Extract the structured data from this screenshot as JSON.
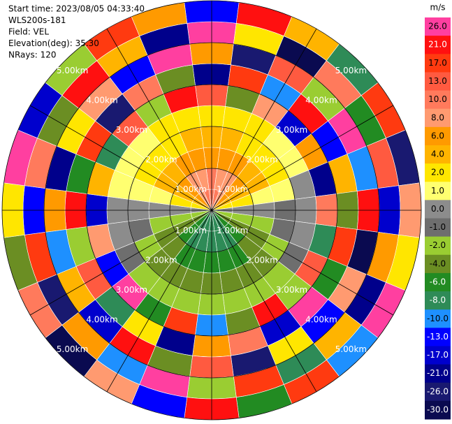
{
  "chart_data": {
    "type": "ppi",
    "header": [
      "Start time: 2023/08/05 04:33:40",
      "WLS200s-181",
      "Field: VEL",
      "Elevation(deg): 35.30",
      "NRays: 120"
    ],
    "colorbar_title": "m/s",
    "levels": [
      {
        "value": 26,
        "label": "26.0"
      },
      {
        "value": 21,
        "label": "21.0"
      },
      {
        "value": 17,
        "label": "17.0"
      },
      {
        "value": 13,
        "label": "13.0"
      },
      {
        "value": 10,
        "label": "10.0"
      },
      {
        "value": 8,
        "label": "8.0"
      },
      {
        "value": 6,
        "label": "6.0"
      },
      {
        "value": 4,
        "label": "4.0"
      },
      {
        "value": 2,
        "label": "2.0"
      },
      {
        "value": 1,
        "label": "1.0"
      },
      {
        "value": 0,
        "label": "0.0"
      },
      {
        "value": -1,
        "label": "-1.0"
      },
      {
        "value": -2,
        "label": "-2.0"
      },
      {
        "value": -4,
        "label": "-4.0"
      },
      {
        "value": -6,
        "label": "-6.0"
      },
      {
        "value": -8,
        "label": "-8.0"
      },
      {
        "value": -10,
        "label": "-10.0"
      },
      {
        "value": -13,
        "label": "-13.0"
      },
      {
        "value": -17,
        "label": "-17.0"
      },
      {
        "value": -21,
        "label": "-21.0"
      },
      {
        "value": -26,
        "label": "-26.0"
      },
      {
        "value": -30,
        "label": "-30.0"
      }
    ],
    "colors": [
      "#ff3fa0",
      "#ff1010",
      "#ff3a10",
      "#ff5a40",
      "#ff7a5c",
      "#ff9a70",
      "#ff9a00",
      "#ffb400",
      "#ffe600",
      "#ffff70",
      "#8c8c8c",
      "#6e6e6e",
      "#9acd32",
      "#6b8e23",
      "#228b22",
      "#2e8b57",
      "#1e90ff",
      "#0000ff",
      "#0000cd",
      "#00008b",
      "#191970",
      "#0a0a50"
    ],
    "rlim": [
      0,
      5
    ],
    "rticks": [
      {
        "value": 1,
        "label": "1.00km"
      },
      {
        "value": 2,
        "label": "2.00km"
      },
      {
        "value": 3,
        "label": "3.00km"
      },
      {
        "value": 4,
        "label": "4.00km"
      },
      {
        "value": 5,
        "label": "5.00km"
      }
    ],
    "range_edges": [
      0,
      0.5,
      1,
      1.5,
      2,
      2.5,
      3,
      3.5,
      4,
      4.5,
      5
    ],
    "azimuths": [
      0,
      15,
      30,
      45,
      60,
      75,
      90,
      105,
      120,
      135,
      150,
      165,
      180,
      195,
      210,
      225,
      240,
      255,
      270,
      285,
      300,
      315,
      330,
      345
    ],
    "velocity": [
      [
        10,
        10,
        7,
        4,
        2,
        13,
        -21,
        6,
        26,
        -13
      ],
      [
        10,
        9,
        7,
        4,
        2,
        -4,
        17,
        -26,
        2,
        21
      ],
      [
        9,
        8,
        6,
        3,
        2,
        8,
        -10,
        13,
        -30,
        4
      ],
      [
        7,
        7,
        5,
        3,
        1,
        -17,
        21,
        -2,
        10,
        -8
      ],
      [
        5,
        5,
        4,
        2,
        1,
        6,
        -13,
        26,
        -6,
        17
      ],
      [
        2,
        2,
        1,
        1,
        0,
        -21,
        4,
        -10,
        13,
        -26
      ],
      [
        0,
        0,
        0,
        -1,
        0,
        10,
        -4,
        21,
        -17,
        8
      ],
      [
        -2,
        -2,
        -2,
        -1,
        0,
        -8,
        17,
        -30,
        6,
        2
      ],
      [
        -4,
        -4,
        -3,
        -2,
        -1,
        13,
        -6,
        8,
        -21,
        26
      ],
      [
        -6,
        -6,
        -4,
        -3,
        -2,
        -2,
        26,
        -13,
        4,
        -10
      ],
      [
        -8,
        -7,
        -5,
        -4,
        -2,
        21,
        -17,
        2,
        -8,
        17
      ],
      [
        -8,
        -8,
        -6,
        -4,
        -2,
        -4,
        10,
        -26,
        17,
        -6
      ],
      [
        -8,
        -8,
        -6,
        -4,
        -2,
        -10,
        6,
        13,
        -2,
        21
      ],
      [
        -8,
        -8,
        -6,
        -4,
        -2,
        17,
        -21,
        -4,
        26,
        -13
      ],
      [
        -8,
        -7,
        -5,
        -4,
        -2,
        -6,
        2,
        21,
        -10,
        8
      ],
      [
        -6,
        -6,
        -4,
        -3,
        -2,
        26,
        -8,
        -17,
        6,
        -30
      ],
      [
        -4,
        -4,
        -3,
        -2,
        -1,
        -13,
        13,
        4,
        -26,
        10
      ],
      [
        -2,
        -2,
        -2,
        -1,
        0,
        8,
        -2,
        -10,
        17,
        -4
      ],
      [
        0,
        0,
        0,
        0,
        0,
        -17,
        21,
        6,
        -13,
        2
      ],
      [
        2,
        2,
        1,
        1,
        1,
        4,
        -6,
        -21,
        10,
        26
      ],
      [
        5,
        5,
        4,
        2,
        1,
        -8,
        17,
        2,
        -4,
        -17
      ],
      [
        7,
        7,
        5,
        3,
        1,
        13,
        -26,
        8,
        21,
        -2
      ],
      [
        9,
        8,
        6,
        3,
        2,
        -2,
        10,
        -13,
        4,
        17
      ],
      [
        10,
        9,
        7,
        4,
        2,
        21,
        -4,
        26,
        -21,
        6
      ]
    ]
  }
}
